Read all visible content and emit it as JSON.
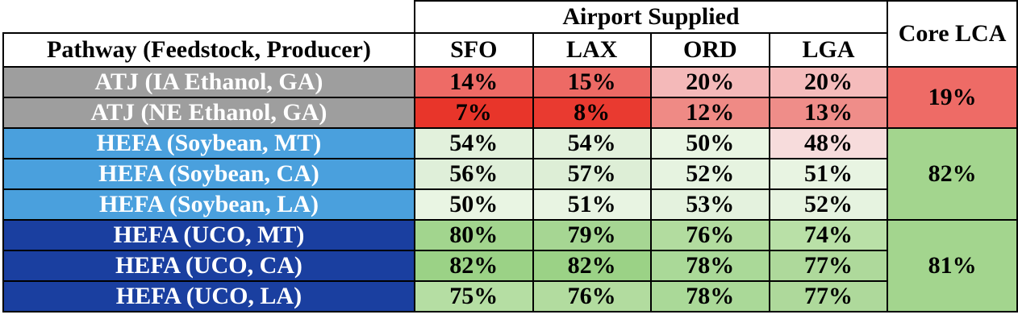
{
  "header": {
    "group_label": "Airport Supplied",
    "pathway_label": "Pathway (Feedstock, Producer)",
    "core_label": "Core LCA",
    "airports": [
      "SFO",
      "LAX",
      "ORD",
      "LGA"
    ]
  },
  "rows": [
    {
      "pathway": "ATJ (IA Ethanol, GA)",
      "values": [
        "14%",
        "15%",
        "20%",
        "20%"
      ],
      "colors": [
        "#ee6b66",
        "#ed6a65",
        "#f4b9b9",
        "#f5bcbc"
      ],
      "label_bg": "#9e9e9e"
    },
    {
      "pathway": "ATJ (NE Ethanol, GA)",
      "values": [
        "7%",
        "8%",
        "12%",
        "13%"
      ],
      "colors": [
        "#e8352a",
        "#e93a30",
        "#ef8a85",
        "#ef8d89"
      ],
      "label_bg": "#9e9e9e"
    },
    {
      "pathway": "HEFA (Soybean, MT)",
      "values": [
        "54%",
        "54%",
        "50%",
        "48%"
      ],
      "colors": [
        "#e2f1dc",
        "#e2f1dc",
        "#e9f5e3",
        "#f7dcdc"
      ],
      "label_bg": "#4aa0dd"
    },
    {
      "pathway": "HEFA (Soybean, CA)",
      "values": [
        "56%",
        "57%",
        "52%",
        "51%"
      ],
      "colors": [
        "#dfefd9",
        "#ddeed6",
        "#e6f3e0",
        "#e8f4e2"
      ],
      "label_bg": "#4aa0dd"
    },
    {
      "pathway": "HEFA (Soybean, LA)",
      "values": [
        "50%",
        "51%",
        "53%",
        "52%"
      ],
      "colors": [
        "#e9f5e3",
        "#e8f4e2",
        "#e4f2de",
        "#e6f3e0"
      ],
      "label_bg": "#4aa0dd"
    },
    {
      "pathway": "HEFA (UCO, MT)",
      "values": [
        "80%",
        "79%",
        "76%",
        "74%"
      ],
      "colors": [
        "#a2d58e",
        "#a6d693",
        "#b2dc9f",
        "#b9e0a7"
      ],
      "label_bg": "#1a3fa0"
    },
    {
      "pathway": "HEFA (UCO, CA)",
      "values": [
        "82%",
        "82%",
        "78%",
        "77%"
      ],
      "colors": [
        "#9bd286",
        "#9bd286",
        "#aad998",
        "#aed99b"
      ],
      "label_bg": "#1a3fa0"
    },
    {
      "pathway": "HEFA (UCO, LA)",
      "values": [
        "75%",
        "76%",
        "78%",
        "77%"
      ],
      "colors": [
        "#b5de a3",
        "#b2dc9f",
        "#aad998",
        "#aed99b"
      ],
      "label_bg": "#1a3fa0"
    }
  ],
  "core_lca": [
    {
      "value": "19%",
      "rowspan": 2,
      "color": "#ee6b66"
    },
    {
      "value": "82%",
      "rowspan": 3,
      "color": "#a3d58e"
    },
    {
      "value": "81%",
      "rowspan": 3,
      "color": "#a3d58e"
    }
  ]
}
